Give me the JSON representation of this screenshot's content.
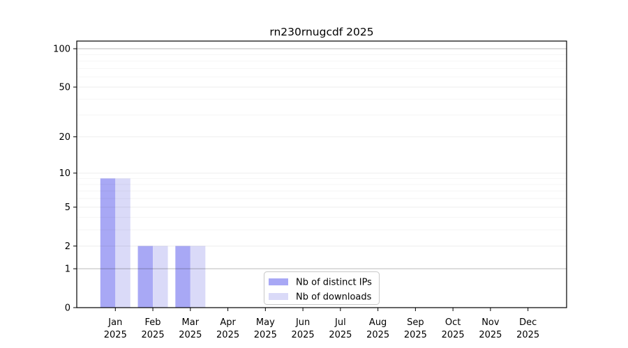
{
  "chart_data": {
    "type": "bar",
    "title": "rn230rnugcdf 2025",
    "year": "2025",
    "categories": [
      "Jan",
      "Feb",
      "Mar",
      "Apr",
      "May",
      "Jun",
      "Jul",
      "Aug",
      "Sep",
      "Oct",
      "Nov",
      "Dec"
    ],
    "series": [
      {
        "name": "Nb of distinct IPs",
        "color": "#a8a8f5",
        "values": [
          9,
          2,
          2,
          0,
          0,
          0,
          0,
          0,
          0,
          0,
          0,
          0
        ]
      },
      {
        "name": "Nb of downloads",
        "color": "#dadaf8",
        "values": [
          9,
          2,
          2,
          0,
          0,
          0,
          0,
          0,
          0,
          0,
          0,
          0
        ]
      }
    ],
    "yscale": "log1p",
    "ylim": [
      0,
      115
    ],
    "yticks": [
      0,
      1,
      2,
      5,
      10,
      20,
      50,
      100
    ],
    "minor_gridlines": [
      3,
      4,
      6,
      7,
      8,
      9,
      30,
      40,
      60,
      70,
      80,
      90
    ],
    "emphasized_gridlines": [
      1,
      100
    ],
    "grid": "horizontal",
    "legend": {
      "position": "lower-center-inside",
      "border_color": "#c8c8c8",
      "background": "#ffffff"
    }
  }
}
